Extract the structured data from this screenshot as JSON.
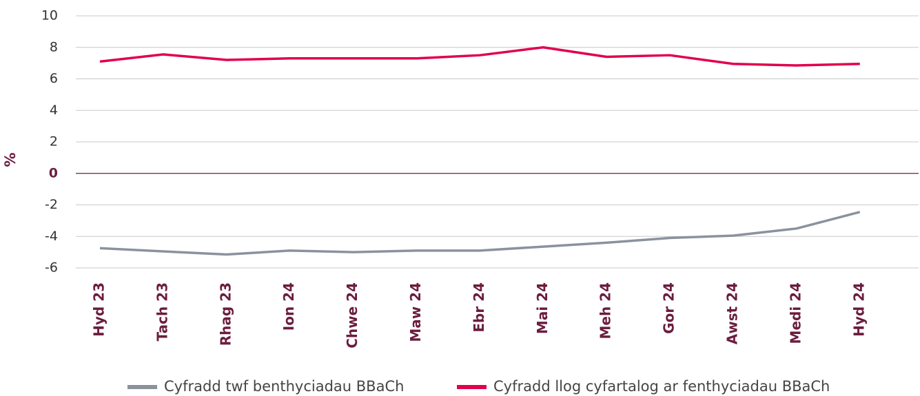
{
  "chart_data": {
    "type": "line",
    "y_label": "%",
    "categories": [
      "Hyd 23",
      "Tach 23",
      "Rhag 23",
      "Ion 24",
      "Chwe 24",
      "Maw 24",
      "Ebr 24",
      "Mai 24",
      "Meh 24",
      "Gor 24",
      "Awst 24",
      "Medi 24",
      "Hyd 24"
    ],
    "series": [
      {
        "name": "Cyfradd twf benthyciadau BBaCh",
        "color": "#8a929e",
        "values": [
          -4.75,
          -4.95,
          -5.15,
          -4.9,
          -5.0,
          -4.9,
          -4.9,
          -4.65,
          -4.4,
          -4.1,
          -3.95,
          -3.5,
          -2.45
        ]
      },
      {
        "name": "Cyfradd llog cyfartalog ar fenthyciadau BBaCh",
        "color": "#e0004d",
        "values": [
          7.1,
          7.55,
          7.2,
          7.3,
          7.3,
          7.3,
          7.5,
          8.0,
          7.4,
          7.5,
          6.95,
          6.85,
          6.95
        ]
      }
    ],
    "ylim": [
      -6,
      10
    ],
    "yticks": [
      -6,
      -4,
      -2,
      0,
      2,
      4,
      6,
      8,
      10
    ],
    "grid": true,
    "legend": "bottom"
  }
}
